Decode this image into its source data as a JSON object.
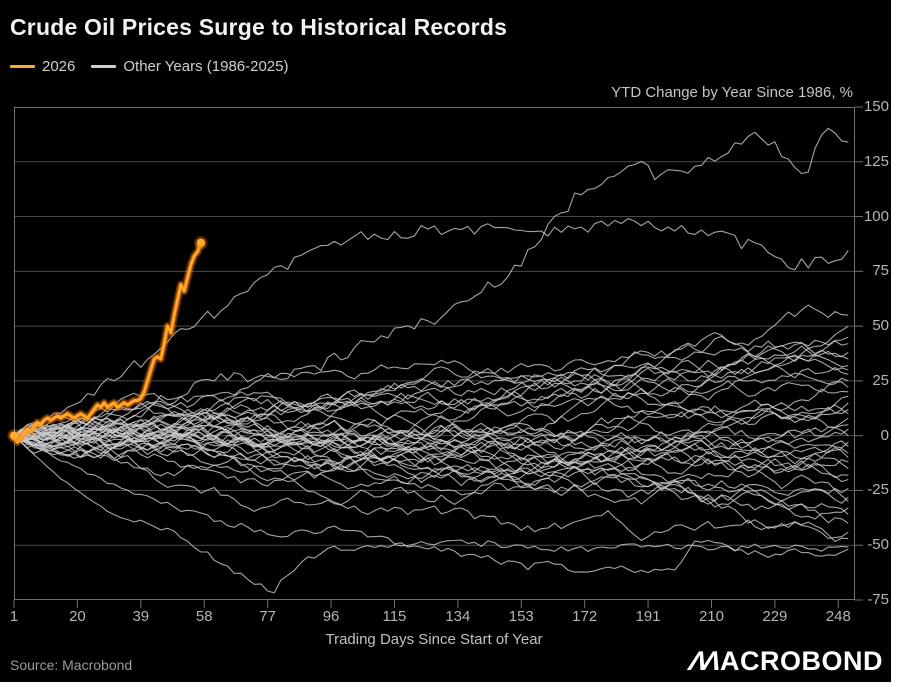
{
  "header": {
    "title": "Crude Oil Prices Surge to Historical Records"
  },
  "footer": {
    "source": "Source: Macrobond",
    "brand_m": "ΛΛ",
    "brand_rest": "ACROBOND"
  },
  "chart_data": {
    "type": "line",
    "title": "Crude Oil Prices Surge to Historical Records",
    "top_right_label": "YTD Change by Year Since 1986, %",
    "xlabel": "Trading Days Since Start of Year",
    "xlim": [
      1,
      253
    ],
    "ylim": [
      -75,
      150
    ],
    "x_ticks": [
      1,
      20,
      39,
      58,
      77,
      96,
      115,
      134,
      153,
      172,
      191,
      210,
      229,
      248
    ],
    "y_ticks": [
      150,
      125,
      100,
      75,
      50,
      25,
      0,
      -25,
      -50,
      -75
    ],
    "grid": "horizontal-only",
    "legend_position": "top-left",
    "colors": {
      "background": "#000000",
      "gridline": "#4a4a4a",
      "plot_border": "#707070",
      "highlight_core": "#ffaa2e",
      "highlight_glow": "#ff7a00",
      "other_years_line": "#cdcdcd"
    },
    "highlight": {
      "name": "2026",
      "marker": "endpoints",
      "points": [
        [
          1,
          0
        ],
        [
          2,
          -3
        ],
        [
          3,
          -1
        ],
        [
          4,
          1
        ],
        [
          5,
          3
        ],
        [
          6,
          2
        ],
        [
          7,
          4
        ],
        [
          8,
          6
        ],
        [
          9,
          5
        ],
        [
          10,
          7
        ],
        [
          11,
          8
        ],
        [
          12,
          7
        ],
        [
          13,
          8
        ],
        [
          14,
          9
        ],
        [
          15,
          8
        ],
        [
          16,
          9
        ],
        [
          17,
          10
        ],
        [
          18,
          9
        ],
        [
          19,
          8
        ],
        [
          20,
          9
        ],
        [
          21,
          10
        ],
        [
          22,
          9
        ],
        [
          23,
          8
        ],
        [
          24,
          10
        ],
        [
          25,
          12
        ],
        [
          26,
          14
        ],
        [
          27,
          13
        ],
        [
          28,
          15
        ],
        [
          29,
          13
        ],
        [
          30,
          14
        ],
        [
          31,
          15
        ],
        [
          32,
          13
        ],
        [
          33,
          14
        ],
        [
          34,
          15
        ],
        [
          35,
          14
        ],
        [
          36,
          15
        ],
        [
          37,
          16
        ],
        [
          38,
          16
        ],
        [
          39,
          17
        ],
        [
          40,
          20
        ],
        [
          41,
          25
        ],
        [
          42,
          30
        ],
        [
          43,
          35
        ],
        [
          44,
          36
        ],
        [
          45,
          35
        ],
        [
          46,
          42
        ],
        [
          47,
          50
        ],
        [
          48,
          47
        ],
        [
          49,
          55
        ],
        [
          50,
          62
        ],
        [
          51,
          69
        ],
        [
          52,
          66
        ],
        [
          53,
          72
        ],
        [
          54,
          78
        ],
        [
          55,
          82
        ],
        [
          56,
          84
        ],
        [
          57,
          88
        ]
      ]
    },
    "other_years": {
      "name": "Other Years (1986-2025)",
      "years_range": "1986-2025",
      "count": 40,
      "band_description": "dense tangle of year paths, all starting at 0, mostly between -45 and +35 by year end",
      "end_values": [
        55,
        50,
        45,
        42,
        38,
        35,
        32,
        30,
        28,
        25,
        22,
        20,
        18,
        15,
        12,
        10,
        8,
        5,
        3,
        0,
        -3,
        -5,
        -8,
        -10,
        -12,
        -15,
        -18,
        -20,
        -24,
        -28,
        -30,
        -33,
        -36,
        -40,
        -44,
        -47
      ],
      "featured": [
        {
          "name": "high-peak-140",
          "noise": 3,
          "anchors": [
            [
              1,
              0
            ],
            [
              30,
              8
            ],
            [
              60,
              25
            ],
            [
              90,
              30
            ],
            [
              110,
              45
            ],
            [
              130,
              55
            ],
            [
              150,
              75
            ],
            [
              170,
              110
            ],
            [
              185,
              125
            ],
            [
              195,
              118
            ],
            [
              210,
              125
            ],
            [
              225,
              138
            ],
            [
              232,
              126
            ],
            [
              238,
              120
            ],
            [
              245,
              140
            ],
            [
              251,
              133
            ]
          ]
        },
        {
          "name": "high-plateau-95",
          "noise": 3,
          "anchors": [
            [
              1,
              0
            ],
            [
              20,
              15
            ],
            [
              40,
              35
            ],
            [
              60,
              55
            ],
            [
              80,
              75
            ],
            [
              100,
              90
            ],
            [
              120,
              93
            ],
            [
              140,
              95
            ],
            [
              160,
              92
            ],
            [
              180,
              97
            ],
            [
              200,
              95
            ],
            [
              215,
              90
            ],
            [
              225,
              85
            ],
            [
              235,
              78
            ],
            [
              245,
              80
            ],
            [
              251,
              85
            ]
          ]
        },
        {
          "name": "low-dip-minus71",
          "noise": 1.5,
          "anchors": [
            [
              1,
              0
            ],
            [
              15,
              -20
            ],
            [
              30,
              -35
            ],
            [
              50,
              -45
            ],
            [
              65,
              -60
            ],
            [
              75,
              -68
            ],
            [
              79,
              -71
            ],
            [
              85,
              -60
            ],
            [
              95,
              -52
            ],
            [
              110,
              -50
            ],
            [
              130,
              -48
            ],
            [
              150,
              -50
            ],
            [
              170,
              -52
            ],
            [
              190,
              -50
            ],
            [
              210,
              -52
            ],
            [
              230,
              -50
            ],
            [
              251,
              -52
            ]
          ]
        },
        {
          "name": "low-slide-minus53",
          "noise": 1.5,
          "anchors": [
            [
              1,
              0
            ],
            [
              20,
              -15
            ],
            [
              40,
              -28
            ],
            [
              60,
              -38
            ],
            [
              80,
              -45
            ],
            [
              100,
              -42
            ],
            [
              120,
              -50
            ],
            [
              140,
              -55
            ],
            [
              155,
              -60
            ],
            [
              160,
              -58
            ],
            [
              170,
              -62
            ],
            [
              180,
              -60
            ],
            [
              190,
              -63
            ],
            [
              200,
              -60
            ],
            [
              205,
              -48
            ],
            [
              215,
              -50
            ],
            [
              225,
              -55
            ],
            [
              235,
              -52
            ],
            [
              245,
              -55
            ],
            [
              251,
              -53
            ]
          ]
        }
      ]
    }
  }
}
